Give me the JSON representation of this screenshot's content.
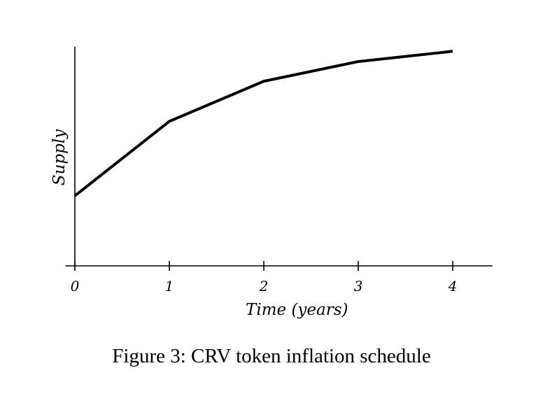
{
  "caption": "Figure 3: CRV token inflation schedule",
  "chart_data": {
    "type": "line",
    "title": "",
    "xlabel": "Time (years)",
    "ylabel": "Supply",
    "x": [
      0,
      1,
      2,
      3,
      4
    ],
    "x_tick_labels": [
      "0",
      "1",
      "2",
      "3",
      "4"
    ],
    "series": [
      {
        "values": [
          0.32,
          0.66,
          0.843,
          0.933,
          0.98
        ]
      }
    ],
    "xlim": [
      -0.1,
      4.42
    ],
    "ylim": [
      0,
      1
    ],
    "y_ticks_shown": false,
    "grid": false,
    "colors": {
      "line": "#000000",
      "axes": "#000000"
    }
  }
}
